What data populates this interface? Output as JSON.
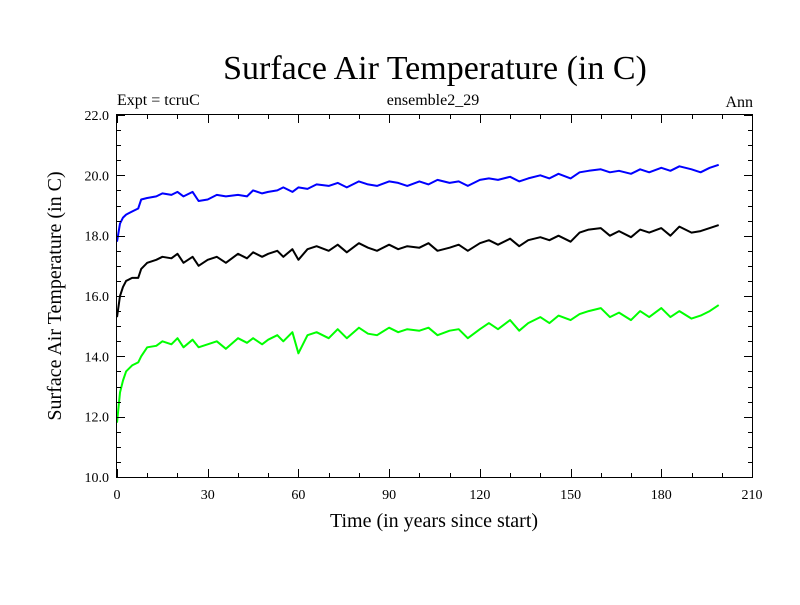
{
  "chart_data": {
    "type": "line",
    "title": "Surface Air Temperature (in C)",
    "header_left": "Expt = tcruC",
    "header_center": "ensemble2_29",
    "header_right": "Ann",
    "xlabel": "Time (in years since start)",
    "ylabel": "Surface Air Temperature (in C)",
    "xlim": [
      0,
      210
    ],
    "ylim": [
      10.0,
      22.0
    ],
    "x_ticks": [
      0,
      30,
      60,
      90,
      120,
      150,
      180,
      210
    ],
    "x_tick_labels": [
      "0",
      "30",
      "60",
      "90",
      "120",
      "150",
      "180",
      "210"
    ],
    "y_ticks": [
      10,
      12,
      14,
      16,
      18,
      20,
      22
    ],
    "y_tick_labels": [
      "10.0",
      "12.0",
      "14.0",
      "16.0",
      "18.0",
      "20.0",
      "22.0"
    ],
    "grid": false,
    "series": [
      {
        "name": "upper",
        "color": "#0000ff",
        "x": [
          0,
          1,
          2,
          3,
          5,
          7,
          8,
          10,
          13,
          15,
          18,
          20,
          22,
          25,
          27,
          30,
          33,
          36,
          40,
          43,
          45,
          48,
          50,
          53,
          55,
          58,
          60,
          63,
          66,
          70,
          73,
          76,
          80,
          83,
          86,
          90,
          93,
          96,
          100,
          103,
          106,
          110,
          113,
          116,
          120,
          123,
          126,
          130,
          133,
          136,
          140,
          143,
          146,
          150,
          153,
          156,
          160,
          163,
          166,
          170,
          173,
          176,
          180,
          183,
          186,
          190,
          193,
          196,
          199
        ],
        "values": [
          17.8,
          18.4,
          18.6,
          18.7,
          18.8,
          18.9,
          19.2,
          19.25,
          19.3,
          19.4,
          19.35,
          19.45,
          19.3,
          19.45,
          19.15,
          19.2,
          19.35,
          19.3,
          19.35,
          19.3,
          19.5,
          19.4,
          19.45,
          19.5,
          19.6,
          19.45,
          19.6,
          19.55,
          19.7,
          19.65,
          19.75,
          19.6,
          19.8,
          19.7,
          19.65,
          19.8,
          19.75,
          19.65,
          19.8,
          19.7,
          19.85,
          19.75,
          19.8,
          19.65,
          19.85,
          19.9,
          19.85,
          19.95,
          19.8,
          19.9,
          20.0,
          19.9,
          20.05,
          19.9,
          20.1,
          20.15,
          20.2,
          20.1,
          20.15,
          20.05,
          20.2,
          20.1,
          20.25,
          20.15,
          20.3,
          20.2,
          20.1,
          20.25,
          20.35
        ]
      },
      {
        "name": "middle",
        "color": "#000000",
        "x": [
          0,
          1,
          2,
          3,
          5,
          7,
          8,
          10,
          13,
          15,
          18,
          20,
          22,
          25,
          27,
          30,
          33,
          36,
          40,
          43,
          45,
          48,
          50,
          53,
          55,
          58,
          60,
          63,
          66,
          70,
          73,
          76,
          80,
          83,
          86,
          90,
          93,
          96,
          100,
          103,
          106,
          110,
          113,
          116,
          120,
          123,
          126,
          130,
          133,
          136,
          140,
          143,
          146,
          150,
          153,
          156,
          160,
          163,
          166,
          170,
          173,
          176,
          180,
          183,
          186,
          190,
          193,
          196,
          199
        ],
        "values": [
          15.3,
          16.0,
          16.3,
          16.5,
          16.6,
          16.6,
          16.9,
          17.1,
          17.2,
          17.3,
          17.25,
          17.4,
          17.1,
          17.3,
          17.0,
          17.2,
          17.3,
          17.1,
          17.4,
          17.25,
          17.45,
          17.3,
          17.4,
          17.5,
          17.3,
          17.55,
          17.2,
          17.55,
          17.65,
          17.5,
          17.7,
          17.45,
          17.75,
          17.6,
          17.5,
          17.7,
          17.55,
          17.65,
          17.6,
          17.75,
          17.5,
          17.6,
          17.7,
          17.5,
          17.75,
          17.85,
          17.7,
          17.9,
          17.65,
          17.85,
          17.95,
          17.85,
          18.0,
          17.8,
          18.1,
          18.2,
          18.25,
          18.0,
          18.15,
          17.95,
          18.2,
          18.1,
          18.25,
          18.0,
          18.3,
          18.1,
          18.15,
          18.25,
          18.35
        ]
      },
      {
        "name": "lower",
        "color": "#00ff00",
        "x": [
          0,
          1,
          2,
          3,
          5,
          7,
          8,
          10,
          13,
          15,
          18,
          20,
          22,
          25,
          27,
          30,
          33,
          36,
          40,
          43,
          45,
          48,
          50,
          53,
          55,
          58,
          60,
          63,
          66,
          70,
          73,
          76,
          80,
          83,
          86,
          90,
          93,
          96,
          100,
          103,
          106,
          110,
          113,
          116,
          120,
          123,
          126,
          130,
          133,
          136,
          140,
          143,
          146,
          150,
          153,
          156,
          160,
          163,
          166,
          170,
          173,
          176,
          180,
          183,
          186,
          190,
          193,
          196,
          199
        ],
        "values": [
          11.8,
          12.8,
          13.2,
          13.5,
          13.7,
          13.8,
          14.0,
          14.3,
          14.35,
          14.5,
          14.4,
          14.6,
          14.3,
          14.55,
          14.3,
          14.4,
          14.5,
          14.25,
          14.6,
          14.45,
          14.6,
          14.4,
          14.55,
          14.7,
          14.5,
          14.8,
          14.1,
          14.7,
          14.8,
          14.6,
          14.9,
          14.6,
          14.95,
          14.75,
          14.7,
          14.95,
          14.8,
          14.9,
          14.85,
          14.95,
          14.7,
          14.85,
          14.9,
          14.6,
          14.9,
          15.1,
          14.9,
          15.2,
          14.85,
          15.1,
          15.3,
          15.1,
          15.35,
          15.2,
          15.4,
          15.5,
          15.6,
          15.3,
          15.45,
          15.2,
          15.5,
          15.3,
          15.6,
          15.3,
          15.5,
          15.25,
          15.35,
          15.5,
          15.7
        ]
      }
    ]
  }
}
